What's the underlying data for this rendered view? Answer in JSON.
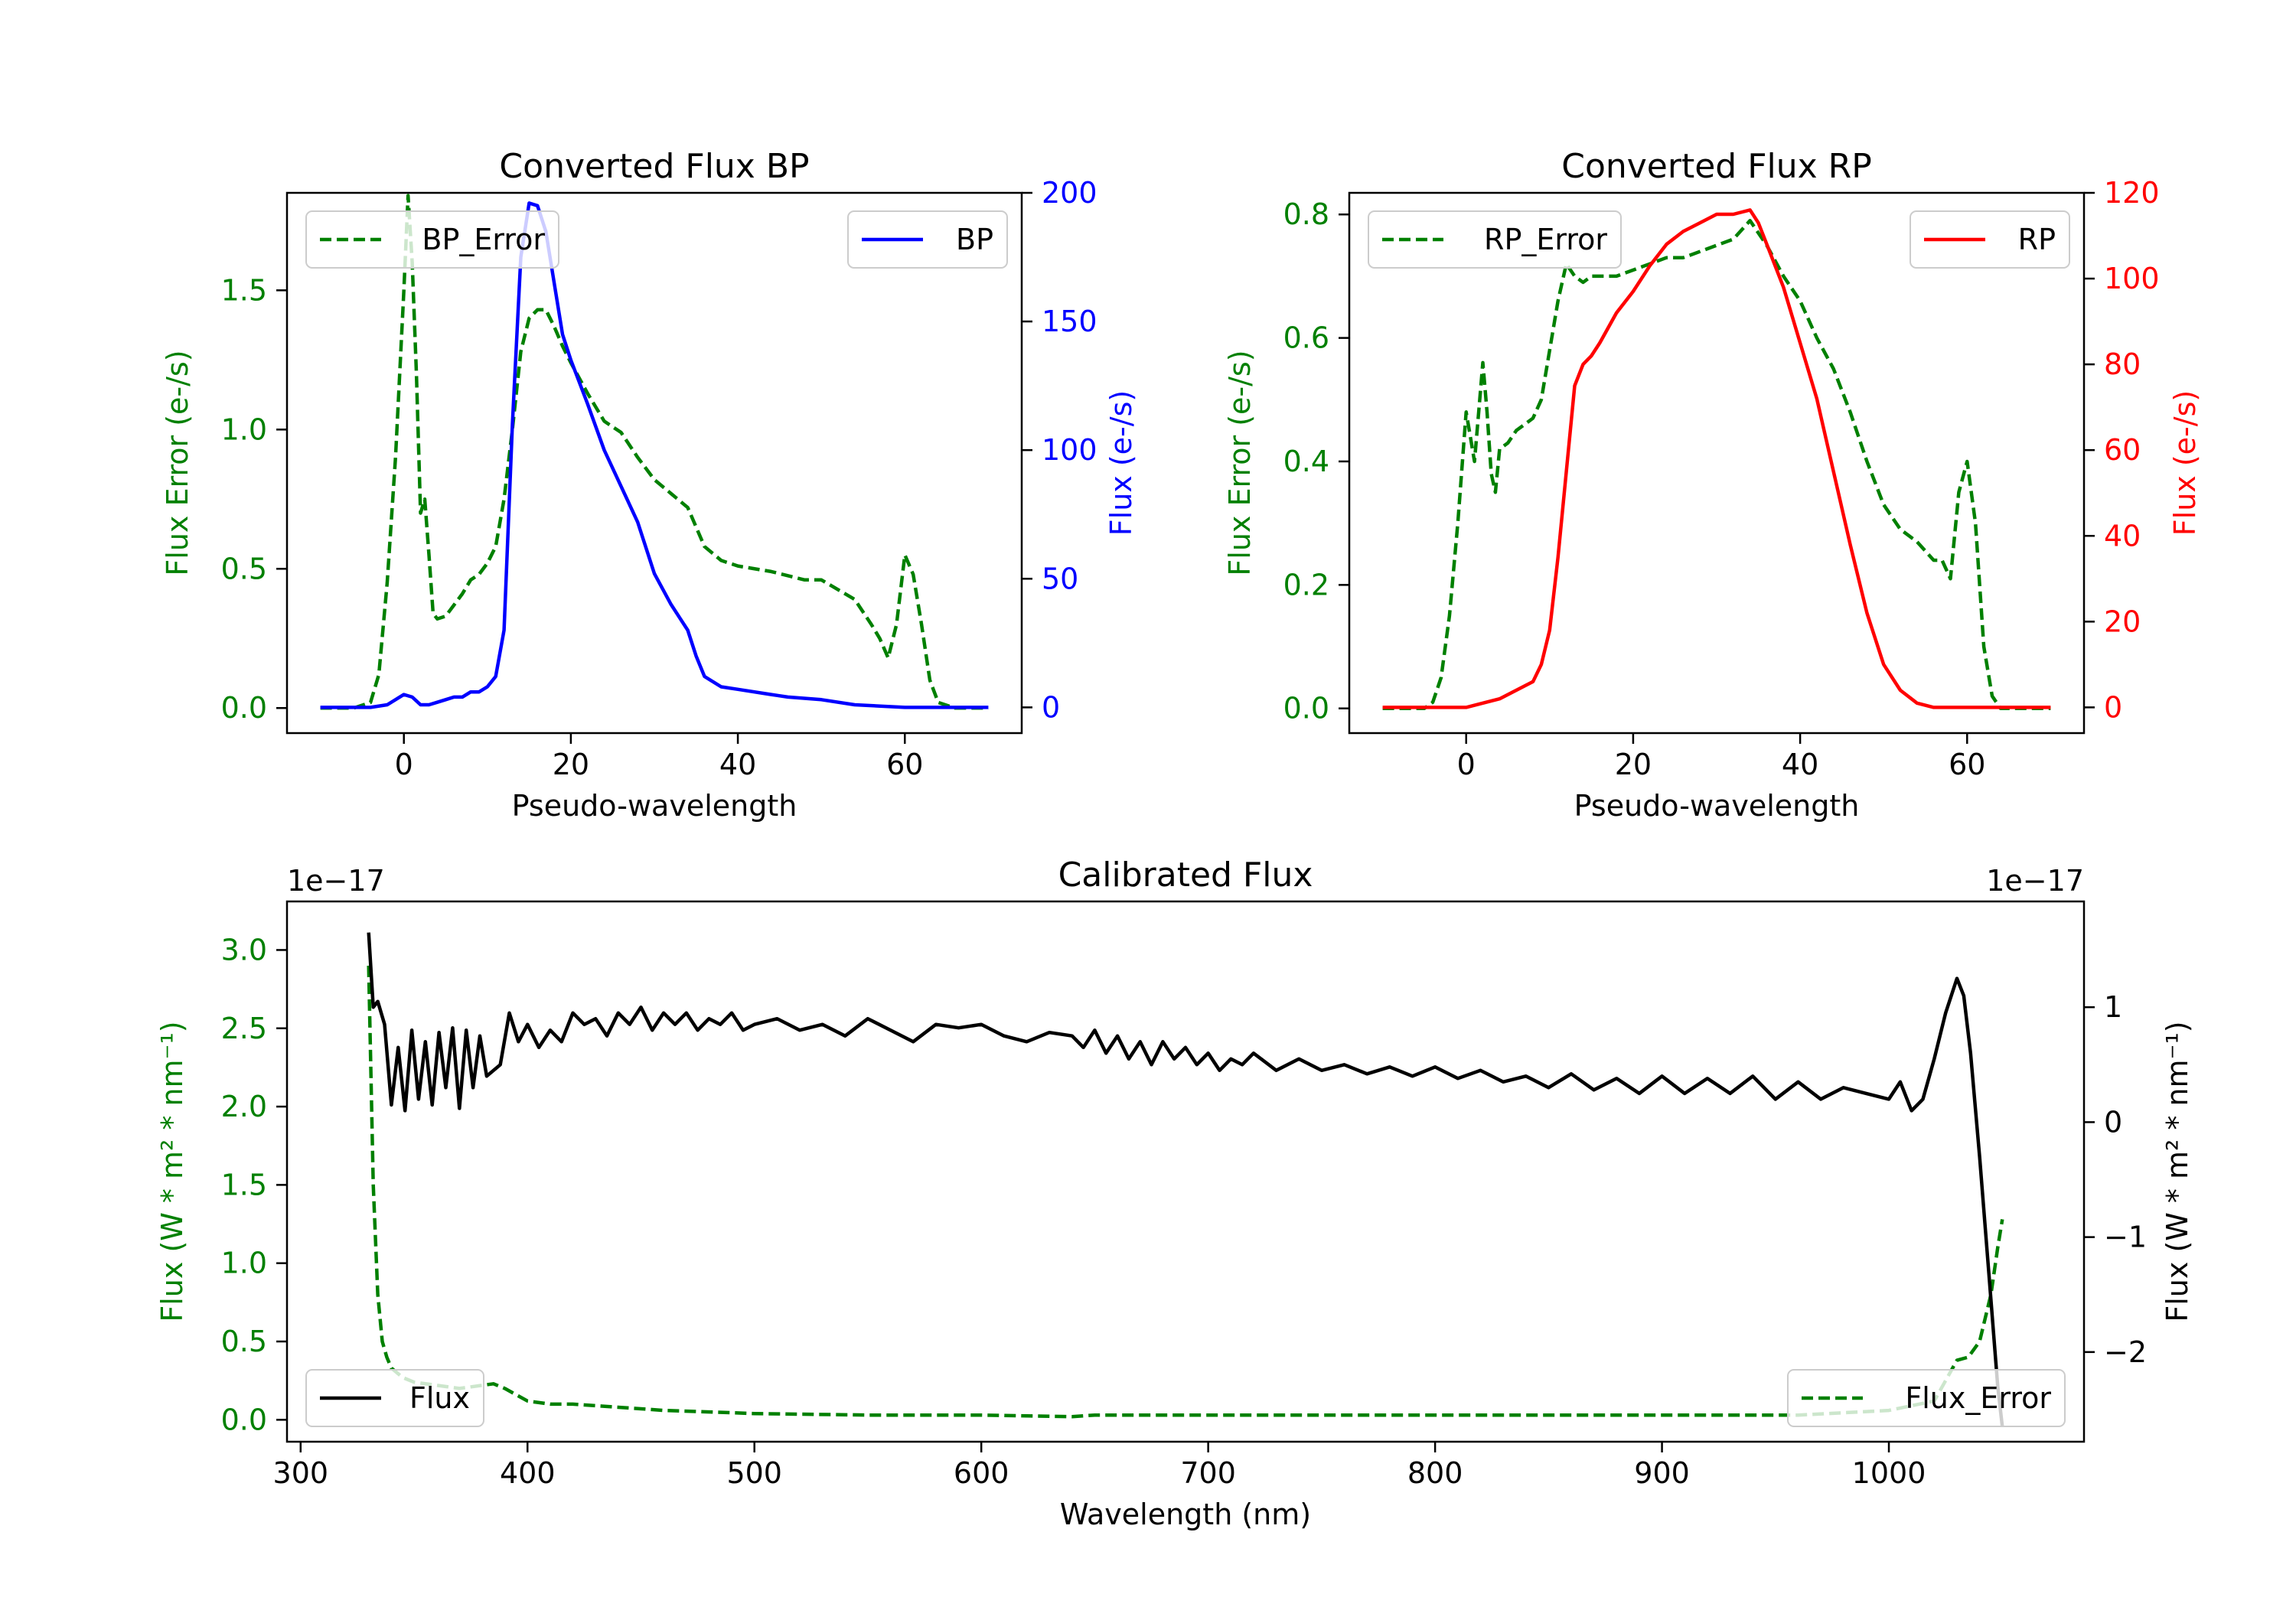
{
  "colors": {
    "green": "#008000",
    "blue": "#0000ff",
    "red": "#ff0000",
    "black": "#000000"
  },
  "chart_data": [
    {
      "type": "line",
      "id": "bp",
      "title": "Converted Flux BP",
      "xlabel": "Pseudo-wavelength",
      "ylabel_left": "Flux Error (e-/s)",
      "ylabel_right": "Flux (e-/s)",
      "xlim": [
        -14,
        74
      ],
      "ylim_left": [
        -0.09,
        1.85
      ],
      "ylim_right": [
        -10,
        200
      ],
      "xticks": [
        "0",
        "20",
        "40",
        "60"
      ],
      "yticks_left": [
        "0.0",
        "0.5",
        "1.0",
        "1.5"
      ],
      "yticks_right": [
        "0",
        "50",
        "100",
        "150",
        "200"
      ],
      "legend_left": {
        "label": "BP_Error",
        "location": "upper left"
      },
      "legend_right": {
        "label": "BP",
        "location": "upper right"
      },
      "series": [
        {
          "name": "BP_Error",
          "axis": "left",
          "style": "dashed",
          "color": "#008000",
          "x": [
            -10,
            -6,
            -4,
            -3,
            -2,
            -1,
            0,
            0.5,
            1,
            1.5,
            2,
            2.5,
            3,
            3.5,
            4,
            5,
            6,
            7,
            8,
            9,
            10,
            11,
            12,
            13,
            14,
            15,
            16,
            17,
            18,
            19,
            20,
            22,
            24,
            26,
            28,
            30,
            32,
            34,
            36,
            38,
            40,
            44,
            48,
            50,
            54,
            56,
            57,
            58,
            59,
            60,
            61,
            62,
            63,
            64,
            66,
            70
          ],
          "values": [
            0.0,
            0.0,
            0.02,
            0.12,
            0.45,
            0.9,
            1.5,
            1.84,
            1.6,
            1.2,
            0.7,
            0.75,
            0.55,
            0.34,
            0.32,
            0.33,
            0.37,
            0.41,
            0.46,
            0.48,
            0.52,
            0.58,
            0.75,
            1.0,
            1.28,
            1.4,
            1.43,
            1.43,
            1.37,
            1.3,
            1.24,
            1.13,
            1.03,
            0.99,
            0.9,
            0.82,
            0.77,
            0.72,
            0.58,
            0.53,
            0.51,
            0.49,
            0.46,
            0.46,
            0.39,
            0.3,
            0.25,
            0.18,
            0.3,
            0.55,
            0.48,
            0.3,
            0.1,
            0.02,
            0.0,
            0.0
          ]
        },
        {
          "name": "BP",
          "axis": "right",
          "style": "solid",
          "color": "#0000ff",
          "x": [
            -10,
            -4,
            -2,
            0,
            1,
            2,
            3,
            4,
            5,
            6,
            7,
            8,
            9,
            10,
            11,
            12,
            13,
            14,
            15,
            16,
            17,
            18,
            19,
            20,
            22,
            24,
            26,
            28,
            30,
            32,
            34,
            35,
            36,
            38,
            40,
            44,
            46,
            50,
            54,
            60,
            70
          ],
          "values": [
            0,
            0,
            1,
            5,
            4,
            1,
            1,
            2,
            3,
            4,
            4,
            6,
            6,
            8,
            12,
            30,
            110,
            175,
            196,
            195,
            185,
            165,
            145,
            135,
            118,
            100,
            86,
            72,
            52,
            40,
            30,
            20,
            12,
            8,
            7,
            5,
            4,
            3,
            1,
            0,
            0
          ]
        }
      ]
    },
    {
      "type": "line",
      "id": "rp",
      "title": "Converted Flux RP",
      "xlabel": "Pseudo-wavelength",
      "ylabel_left": "Flux Error (e-/s)",
      "ylabel_right": "Flux (e-/s)",
      "xlim": [
        -14,
        74
      ],
      "ylim_left": [
        -0.04,
        0.835
      ],
      "ylim_right": [
        -6,
        120
      ],
      "xticks": [
        "0",
        "20",
        "40",
        "60"
      ],
      "yticks_left": [
        "0.0",
        "0.2",
        "0.4",
        "0.6",
        "0.8"
      ],
      "yticks_right": [
        "0",
        "20",
        "40",
        "60",
        "80",
        "100",
        "120"
      ],
      "legend_left": {
        "label": "RP_Error",
        "location": "upper left"
      },
      "legend_right": {
        "label": "RP",
        "location": "upper right"
      },
      "series": [
        {
          "name": "RP_Error",
          "axis": "left",
          "style": "dashed",
          "color": "#008000",
          "x": [
            -10,
            -5,
            -4,
            -3,
            -2,
            -1,
            0,
            0.5,
            1,
            1.5,
            2,
            2.5,
            3,
            3.5,
            4,
            5,
            6,
            7,
            8,
            9,
            10,
            11,
            12,
            13,
            14,
            15,
            16,
            18,
            20,
            22,
            24,
            26,
            28,
            30,
            32,
            34,
            36,
            38,
            40,
            42,
            44,
            46,
            48,
            50,
            52,
            54,
            56,
            57,
            58,
            59,
            60,
            61,
            62,
            63,
            64,
            66,
            70
          ],
          "values": [
            0.0,
            0.0,
            0.01,
            0.05,
            0.15,
            0.3,
            0.48,
            0.44,
            0.4,
            0.48,
            0.56,
            0.48,
            0.38,
            0.35,
            0.42,
            0.43,
            0.45,
            0.46,
            0.47,
            0.5,
            0.58,
            0.66,
            0.72,
            0.7,
            0.69,
            0.7,
            0.7,
            0.7,
            0.71,
            0.72,
            0.73,
            0.73,
            0.74,
            0.75,
            0.76,
            0.79,
            0.75,
            0.7,
            0.66,
            0.6,
            0.55,
            0.48,
            0.4,
            0.33,
            0.29,
            0.27,
            0.24,
            0.24,
            0.21,
            0.35,
            0.4,
            0.3,
            0.1,
            0.02,
            0.0,
            0.0,
            0.0
          ]
        },
        {
          "name": "RP",
          "axis": "right",
          "style": "solid",
          "color": "#ff0000",
          "x": [
            -10,
            -4,
            0,
            2,
            4,
            6,
            8,
            9,
            10,
            11,
            12,
            13,
            14,
            15,
            16,
            18,
            20,
            22,
            24,
            26,
            28,
            30,
            32,
            34,
            35,
            36,
            38,
            40,
            42,
            44,
            46,
            48,
            50,
            52,
            54,
            56,
            60,
            70
          ],
          "values": [
            0,
            0,
            0,
            1,
            2,
            4,
            6,
            10,
            18,
            35,
            55,
            75,
            80,
            82,
            85,
            92,
            97,
            103,
            108,
            111,
            113,
            115,
            115,
            116,
            113,
            108,
            98,
            85,
            72,
            55,
            38,
            22,
            10,
            4,
            1,
            0,
            0,
            0
          ]
        }
      ]
    },
    {
      "type": "line",
      "id": "calib",
      "title": "Calibrated Flux",
      "xlabel": "Wavelength (nm)",
      "ylabel_left": "Flux (W * m² * nm⁻¹)",
      "ylabel_right": "Flux (W * m² * nm⁻¹)",
      "offset_left": "1e−17",
      "offset_right": "1e−17",
      "xlim": [
        294,
        1086
      ],
      "ylim_left": [
        -0.14,
        3.31
      ],
      "ylim_right": [
        -2.78,
        1.92
      ],
      "xticks": [
        "300",
        "400",
        "500",
        "600",
        "700",
        "800",
        "900",
        "1000"
      ],
      "yticks_left": [
        "0.0",
        "0.5",
        "1.0",
        "1.5",
        "2.0",
        "2.5",
        "3.0"
      ],
      "yticks_right": [
        "−2",
        "−1",
        "0",
        "1"
      ],
      "legend_left": {
        "label": "Flux",
        "location": "lower left"
      },
      "legend_right": {
        "label": "Flux_Error",
        "location": "lower right"
      },
      "series": [
        {
          "name": "Flux_Error",
          "axis": "left",
          "style": "dashed",
          "color": "#008000",
          "x": [
            330,
            332,
            334,
            336,
            338,
            340,
            345,
            350,
            360,
            370,
            380,
            385,
            390,
            400,
            410,
            420,
            430,
            440,
            450,
            460,
            480,
            500,
            550,
            600,
            640,
            650,
            700,
            800,
            900,
            960,
            1000,
            1020,
            1030,
            1035,
            1040,
            1045,
            1048,
            1050
          ],
          "values": [
            2.9,
            1.5,
            0.8,
            0.5,
            0.4,
            0.33,
            0.27,
            0.24,
            0.22,
            0.2,
            0.22,
            0.23,
            0.2,
            0.12,
            0.1,
            0.1,
            0.09,
            0.08,
            0.07,
            0.06,
            0.05,
            0.04,
            0.03,
            0.03,
            0.02,
            0.03,
            0.03,
            0.03,
            0.03,
            0.03,
            0.06,
            0.12,
            0.38,
            0.4,
            0.5,
            0.8,
            1.1,
            1.28
          ]
        },
        {
          "name": "Flux",
          "axis": "right",
          "style": "solid",
          "color": "#000000",
          "x": [
            330,
            332,
            334,
            337,
            340,
            343,
            346,
            349,
            352,
            355,
            358,
            361,
            364,
            367,
            370,
            373,
            376,
            379,
            382,
            385,
            388,
            392,
            396,
            400,
            405,
            410,
            415,
            420,
            425,
            430,
            435,
            440,
            445,
            450,
            455,
            460,
            465,
            470,
            475,
            480,
            485,
            490,
            495,
            500,
            510,
            520,
            530,
            540,
            550,
            560,
            570,
            580,
            590,
            600,
            610,
            620,
            630,
            640,
            645,
            650,
            655,
            660,
            665,
            670,
            675,
            680,
            685,
            690,
            695,
            700,
            705,
            710,
            715,
            720,
            730,
            740,
            750,
            760,
            770,
            780,
            790,
            800,
            810,
            820,
            830,
            840,
            850,
            860,
            870,
            880,
            890,
            900,
            910,
            920,
            930,
            940,
            950,
            960,
            970,
            980,
            990,
            1000,
            1005,
            1010,
            1015,
            1020,
            1025,
            1030,
            1033,
            1036,
            1040,
            1044,
            1048,
            1050
          ],
          "values": [
            1.65,
            1.0,
            1.05,
            0.85,
            0.15,
            0.65,
            0.1,
            0.8,
            0.2,
            0.7,
            0.15,
            0.78,
            0.3,
            0.82,
            0.12,
            0.8,
            0.3,
            0.75,
            0.4,
            0.45,
            0.5,
            0.95,
            0.7,
            0.85,
            0.65,
            0.8,
            0.7,
            0.95,
            0.85,
            0.9,
            0.75,
            0.95,
            0.85,
            1.0,
            0.8,
            0.95,
            0.85,
            0.95,
            0.8,
            0.9,
            0.85,
            0.95,
            0.8,
            0.85,
            0.9,
            0.8,
            0.85,
            0.75,
            0.9,
            0.8,
            0.7,
            0.85,
            0.82,
            0.85,
            0.75,
            0.7,
            0.78,
            0.75,
            0.65,
            0.8,
            0.6,
            0.75,
            0.55,
            0.7,
            0.5,
            0.7,
            0.55,
            0.65,
            0.5,
            0.6,
            0.45,
            0.55,
            0.5,
            0.6,
            0.45,
            0.55,
            0.45,
            0.5,
            0.42,
            0.48,
            0.4,
            0.48,
            0.38,
            0.45,
            0.35,
            0.4,
            0.3,
            0.42,
            0.28,
            0.38,
            0.25,
            0.4,
            0.25,
            0.38,
            0.25,
            0.4,
            0.2,
            0.35,
            0.2,
            0.3,
            0.25,
            0.2,
            0.35,
            0.1,
            0.2,
            0.55,
            0.95,
            1.25,
            1.1,
            0.6,
            -0.3,
            -1.3,
            -2.3,
            -2.65
          ]
        }
      ]
    }
  ]
}
